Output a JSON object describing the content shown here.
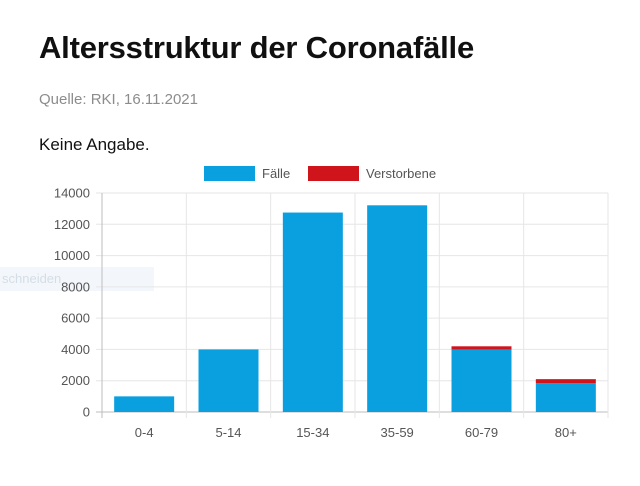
{
  "header": {
    "title": "Altersstruktur der Coronafälle",
    "source": "Quelle: RKI, 16.11.2021",
    "note": "Keine Angabe."
  },
  "ghost_label": "schneiden",
  "colors": {
    "faelle": "#0aa0e0",
    "verstorbene": "#d0141c",
    "grid": "#e6e6e6",
    "axis": "#bdbdbd"
  },
  "chart_data": {
    "type": "bar",
    "stacked": true,
    "categories": [
      "0-4",
      "5-14",
      "15-34",
      "35-59",
      "60-79",
      "80+"
    ],
    "series": [
      {
        "name": "Fälle",
        "values": [
          1000,
          4000,
          12750,
          13200,
          4000,
          1850
        ]
      },
      {
        "name": "Verstorbene",
        "values": [
          0,
          0,
          0,
          10,
          200,
          250
        ]
      }
    ],
    "ylim": [
      0,
      14000
    ],
    "yticks": [
      0,
      2000,
      4000,
      6000,
      8000,
      10000,
      12000,
      14000
    ],
    "legend_position": "top-center",
    "grid": true,
    "xlabel": "",
    "ylabel": ""
  }
}
